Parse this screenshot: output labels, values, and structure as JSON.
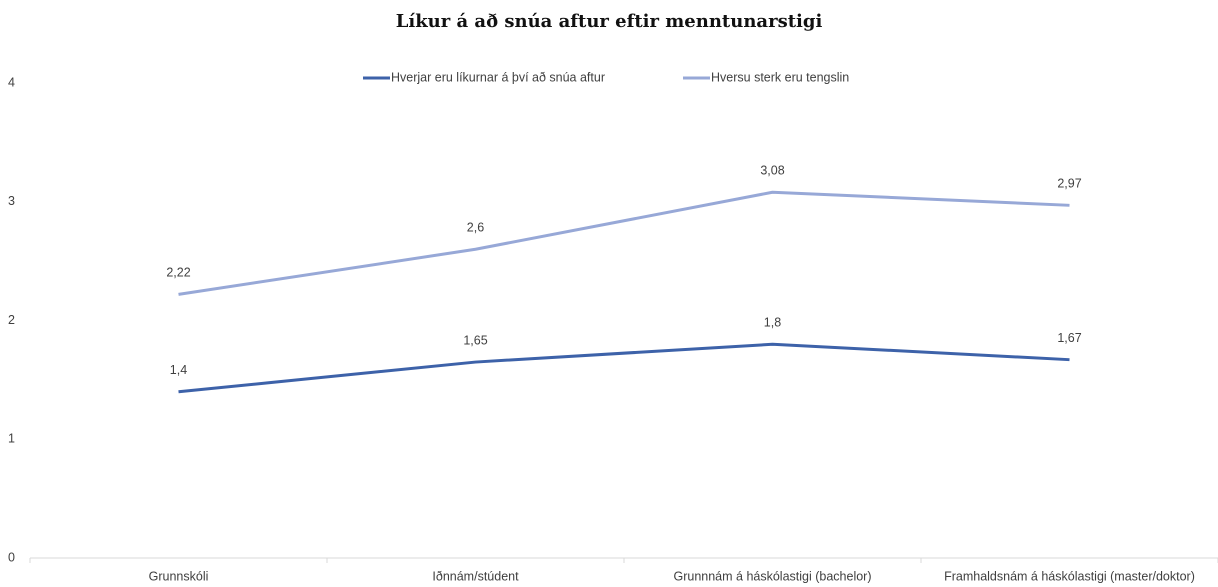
{
  "chart_data": {
    "type": "line",
    "title": "Líkur á að snúa aftur eftir menntunarstigi",
    "categories": [
      "Grunnskóli",
      "Iðnnám/stúdent",
      "Grunnnám á háskólastigi (bachelor)",
      "Framhaldsnám á háskólastigi (master/doktor)"
    ],
    "series": [
      {
        "name": "Hverjar eru líkurnar á því að snúa aftur",
        "color": "#3d62a9",
        "values": [
          1.4,
          1.65,
          1.8,
          1.67
        ],
        "value_labels": [
          "1,4",
          "1,65",
          "1,8",
          "1,67"
        ]
      },
      {
        "name": "Hversu sterk eru tengslin",
        "color": "#97a8d7",
        "values": [
          2.22,
          2.6,
          3.08,
          2.97
        ],
        "value_labels": [
          "2,22",
          "2,6",
          "3,08",
          "2,97"
        ]
      }
    ],
    "ylim": [
      0,
      4
    ],
    "yticks": [
      0,
      1,
      2,
      3,
      4
    ],
    "grid": false,
    "legend": "top"
  }
}
